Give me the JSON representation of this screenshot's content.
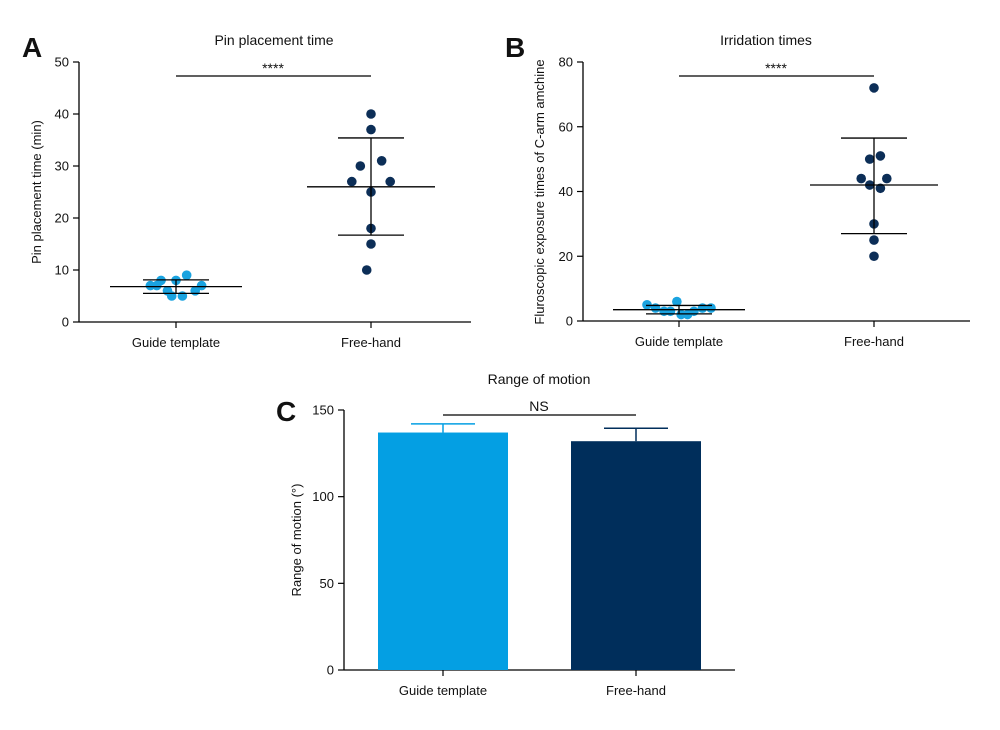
{
  "colors": {
    "guide": "#1aa3e0",
    "free": "#0c2e57",
    "bar_guide": "#049fe3",
    "bar_free": "#002e5b",
    "axis": "#000000"
  },
  "panels": {
    "a": {
      "letter": "A"
    },
    "b": {
      "letter": "B"
    },
    "c": {
      "letter": "C"
    }
  },
  "chart_data": [
    {
      "id": "a",
      "type": "scatter",
      "title": "Pin placement time",
      "xlabel": "",
      "ylabel": "Pin placement time (min)",
      "categories": [
        "Guide template",
        "Free-hand"
      ],
      "ylim": [
        0,
        50
      ],
      "yticks": [
        0,
        10,
        20,
        30,
        40,
        50
      ],
      "significance": "****",
      "series": [
        {
          "name": "Guide template",
          "points": [
            [
              -0.12,
              7
            ],
            [
              -0.09,
              7
            ],
            [
              -0.07,
              8
            ],
            [
              -0.04,
              6
            ],
            [
              -0.02,
              5
            ],
            [
              0.0,
              8
            ],
            [
              0.03,
              5
            ],
            [
              0.05,
              9
            ],
            [
              0.09,
              6
            ],
            [
              0.12,
              7
            ]
          ],
          "mean": 6.8,
          "sd_low": 5.5,
          "sd_high": 8.1
        },
        {
          "name": "Free-hand",
          "points": [
            [
              0.0,
              40
            ],
            [
              0.0,
              37
            ],
            [
              0.05,
              31
            ],
            [
              -0.05,
              30
            ],
            [
              -0.09,
              27
            ],
            [
              0.09,
              27
            ],
            [
              0.0,
              25
            ],
            [
              0.0,
              18
            ],
            [
              0.0,
              15
            ],
            [
              -0.02,
              10
            ]
          ],
          "mean": 26,
          "sd_low": 16.7,
          "sd_high": 35.4
        }
      ]
    },
    {
      "id": "b",
      "type": "scatter",
      "title": "Irridation times",
      "xlabel": "",
      "ylabel": "Fluroscopic exposure times of C-arm amchine",
      "categories": [
        "Guide template",
        "Free-hand"
      ],
      "ylim": [
        0,
        80
      ],
      "yticks": [
        0,
        20,
        40,
        60,
        80
      ],
      "significance": "****",
      "series": [
        {
          "name": "Guide template",
          "points": [
            [
              -0.15,
              5
            ],
            [
              -0.11,
              4
            ],
            [
              -0.07,
              3
            ],
            [
              -0.04,
              3
            ],
            [
              -0.01,
              6
            ],
            [
              0.01,
              2
            ],
            [
              0.04,
              2
            ],
            [
              0.07,
              3
            ],
            [
              0.11,
              4
            ],
            [
              0.15,
              4
            ]
          ],
          "mean": 3.5,
          "sd_low": 2.2,
          "sd_high": 4.8
        },
        {
          "name": "Free-hand",
          "points": [
            [
              0.0,
              72
            ],
            [
              0.03,
              51
            ],
            [
              -0.02,
              50
            ],
            [
              -0.06,
              44
            ],
            [
              0.06,
              44
            ],
            [
              -0.02,
              42
            ],
            [
              0.03,
              41
            ],
            [
              0.0,
              30
            ],
            [
              0.0,
              25
            ],
            [
              0.0,
              20
            ]
          ],
          "mean": 42,
          "sd_low": 27,
          "sd_high": 56.5
        }
      ]
    },
    {
      "id": "c",
      "type": "bar",
      "title": "Range of motion",
      "xlabel": "",
      "ylabel": "Range of motion (°)",
      "categories": [
        "Guide template",
        "Free-hand"
      ],
      "values": [
        137,
        132
      ],
      "error_high": [
        142,
        139.5
      ],
      "ylim": [
        0,
        150
      ],
      "yticks": [
        0,
        50,
        100,
        150
      ],
      "significance": "NS"
    }
  ]
}
